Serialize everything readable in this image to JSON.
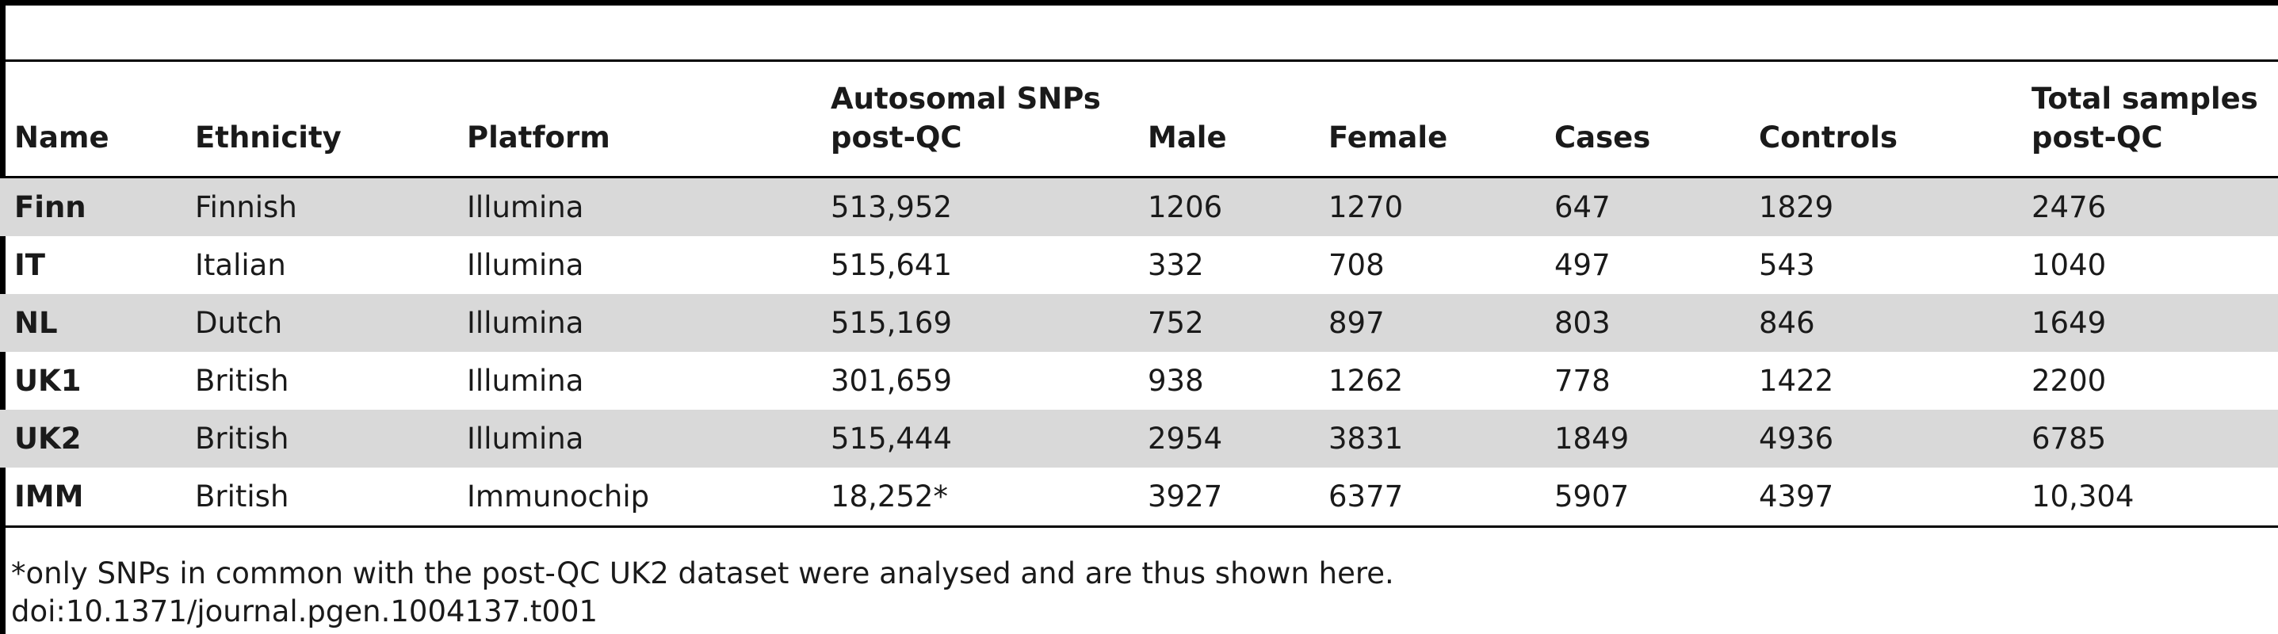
{
  "table": {
    "headers": {
      "name": "Name",
      "ethnicity": "Ethnicity",
      "platform": "Platform",
      "snps_line1": "Autosomal SNPs",
      "snps_line2": "post-QC",
      "male": "Male",
      "female": "Female",
      "cases": "Cases",
      "controls": "Controls",
      "total_line1": "Total samples",
      "total_line2": "post-QC"
    },
    "rows": [
      {
        "name": "Finn",
        "ethnicity": "Finnish",
        "platform": "Illumina",
        "snps": "513,952",
        "male": "1206",
        "female": "1270",
        "cases": "647",
        "controls": "1829",
        "total": "2476"
      },
      {
        "name": "IT",
        "ethnicity": "Italian",
        "platform": "Illumina",
        "snps": "515,641",
        "male": "332",
        "female": "708",
        "cases": "497",
        "controls": "543",
        "total": "1040"
      },
      {
        "name": "NL",
        "ethnicity": "Dutch",
        "platform": "Illumina",
        "snps": "515,169",
        "male": "752",
        "female": "897",
        "cases": "803",
        "controls": "846",
        "total": "1649"
      },
      {
        "name": "UK1",
        "ethnicity": "British",
        "platform": "Illumina",
        "snps": "301,659",
        "male": "938",
        "female": "1262",
        "cases": "778",
        "controls": "1422",
        "total": "2200"
      },
      {
        "name": "UK2",
        "ethnicity": "British",
        "platform": "Illumina",
        "snps": "515,444",
        "male": "2954",
        "female": "3831",
        "cases": "1849",
        "controls": "4936",
        "total": "6785"
      },
      {
        "name": "IMM",
        "ethnicity": "British",
        "platform": "Immunochip",
        "snps": "18,252*",
        "male": "3927",
        "female": "6377",
        "cases": "5907",
        "controls": "4397",
        "total": "10,304"
      }
    ]
  },
  "footnote": {
    "note": "*only SNPs in common with the post-QC UK2 dataset were analysed and are thus shown here.",
    "doi": "doi:10.1371/journal.pgen.1004137.t001"
  },
  "colors": {
    "shaded_row": "#d9d9d9",
    "rule": "#000000"
  }
}
